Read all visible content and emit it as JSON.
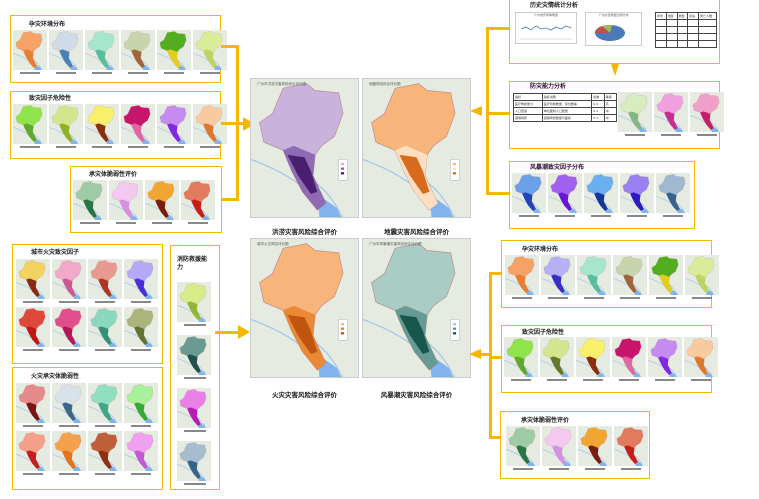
{
  "center": {
    "maps": [
      {
        "caption": "洪涝灾害风险综合评价",
        "title": "广州市洪涝灾害风险综合评价图",
        "colors": [
          "#c9b3dd",
          "#8a63b0",
          "#4b1f70"
        ]
      },
      {
        "caption": "地震灾害风险综合评价",
        "title": "地震风险综合评价图",
        "colors": [
          "#f7b57c",
          "#fde2c8",
          "#d86a1d"
        ]
      },
      {
        "caption": "火灾灾害风险综合评价",
        "title": "城市火灾风险评价图",
        "colors": [
          "#f7b57c",
          "#e8832f",
          "#c0550f"
        ]
      },
      {
        "caption": "风暴潮灾害风险综合评价",
        "title": "广州市风暴潮灾害风险综合评价图",
        "colors": [
          "#a9ccc5",
          "#5f958c",
          "#17564b"
        ]
      }
    ]
  },
  "left": {
    "groups": [
      {
        "title": "孕灾环境分布",
        "thumbs": [
          [
            "#f5a266",
            "#e87a2a"
          ],
          [
            "#cfdbe6",
            "#3c78b0"
          ],
          [
            "#a6e6cf",
            "#4fb893"
          ],
          [
            "#c7d4ad",
            "#9a5a32"
          ],
          [
            "#52ae1f",
            "#f2d31b"
          ],
          [
            "#d9ec9a",
            "#b8d35b"
          ]
        ]
      },
      {
        "title": "致灾因子危险性",
        "thumbs": [
          [
            "#8ee44a",
            "#5aa22a"
          ],
          [
            "#d2e68e",
            "#8aab1a"
          ],
          [
            "#f8f06a",
            "#7a1a05"
          ],
          [
            "#c7156e",
            "#e071a8"
          ],
          [
            "#c58bf0",
            "#7a1de0"
          ],
          [
            "#f8caa0",
            "#d9701d"
          ]
        ]
      },
      {
        "title": "承灾体脆弱性评价",
        "thumbs": [
          [
            "#9fcaa6",
            "#1f6a38"
          ],
          [
            "#f4c9f0",
            "#d08be0"
          ],
          [
            "#f2a632",
            "#6a0f08"
          ],
          [
            "#e27a5e",
            "#c31512"
          ]
        ]
      }
    ],
    "bottom_groups": [
      {
        "title": "城市火灾致灾因子",
        "thumbs": [
          [
            "#f3d360",
            "#7a1a0a"
          ],
          [
            "#f0a9c8",
            "#c9508c"
          ],
          [
            "#e89a90",
            "#a82a1a"
          ],
          [
            "#b3a9f4",
            "#3c20d8"
          ],
          [
            "#e0483a",
            "#c01010"
          ],
          [
            "#e04f8a",
            "#b01050"
          ],
          [
            "#8ad8c0",
            "#2a8a70"
          ],
          [
            "#a9b57a",
            "#5a6a2a"
          ]
        ]
      },
      {
        "title": "火灾承灾体脆弱性",
        "thumbs": [
          [
            "#e58a8a",
            "#6a0808"
          ],
          [
            "#d7e2ea",
            "#2a5a80"
          ],
          [
            "#8ee0c0",
            "#3aa080"
          ],
          [
            "#a8f09a",
            "#2aa02a"
          ],
          [
            "#f4a08a",
            "#c01010"
          ],
          [
            "#f5a04a",
            "#e07010"
          ],
          [
            "#c0603a",
            "#8a2a10"
          ],
          [
            "#f0a0f0",
            "#c050d0"
          ]
        ]
      },
      {
        "title": "消防救援能力",
        "thumbs": [
          [
            "#d8ec8a",
            "#8ab02a"
          ],
          [
            "#6a9a92",
            "#1a4a44"
          ],
          [
            "#e880e8",
            "#b010b0"
          ],
          [
            "#a8bcd0",
            "#2a5a80"
          ]
        ]
      }
    ]
  },
  "right": {
    "stats_title": "历史灾情统计分析",
    "line_chart_title": "广州市历年降雨量",
    "pie_title": "广州灾害类型比例分布",
    "pie_colors": [
      "#4a7ab8",
      "#c0504d",
      "#9bbb59"
    ],
    "table_headers": [
      "年份",
      "地区",
      "类型",
      "损失",
      "死亡人数"
    ],
    "capacity_title": "防灾能力分析",
    "capacity_table": {
      "headers": [
        "指标",
        "指标说明",
        "权重",
        "等级"
      ],
      "rows": [
        [
          "医疗救援能力",
          "医疗机构数量、床位数等",
          "0.4",
          "高"
        ],
        [
          "人口密度",
          "单位面积人口数量",
          "0.3",
          "中"
        ],
        [
          "避难场所",
          "避难场所数量与面积",
          "0.3",
          "中"
        ]
      ]
    },
    "capacity_thumbs": [
      [
        "#d9ecc0",
        "#7ab07a"
      ],
      [
        "#f0a0e0",
        "#c0208a"
      ],
      [
        "#f0a0c8",
        "#c01060"
      ]
    ],
    "storm_title": "风暴潮致灾因子分布",
    "storm_thumbs": [
      [
        "#6aa0e8",
        "#1a3ab0"
      ],
      [
        "#a060f0",
        "#6010d0"
      ],
      [
        "#6ab0f0",
        "#0a2a90"
      ],
      [
        "#9a80f0",
        "#2010c0"
      ],
      [
        "#a0b8d0",
        "#2a5a88"
      ]
    ],
    "groups": [
      {
        "title": "孕灾环境分布",
        "thumbs": [
          [
            "#f5a266",
            "#e87a2a"
          ],
          [
            "#b8b0f4",
            "#2a20c0"
          ],
          [
            "#a6e6cf",
            "#4fb893"
          ],
          [
            "#c7d4ad",
            "#9a5a32"
          ],
          [
            "#52ae1f",
            "#f2d31b"
          ],
          [
            "#d9ec9a",
            "#b8d35b"
          ]
        ]
      },
      {
        "title": "致灾因子危险性",
        "thumbs": [
          [
            "#8ee44a",
            "#5aa22a"
          ],
          [
            "#d2e68e",
            "#5a6a1a"
          ],
          [
            "#f8f06a",
            "#7a1a05"
          ],
          [
            "#c7156e",
            "#e071a8"
          ],
          [
            "#c58bf0",
            "#7a1de0"
          ],
          [
            "#f8caa0",
            "#d9701d"
          ]
        ]
      },
      {
        "title": "承灾体脆弱性评价",
        "thumbs": [
          [
            "#9fcaa6",
            "#1f6a38"
          ],
          [
            "#f4c9f0",
            "#d08be0"
          ],
          [
            "#f2a632",
            "#6a0f08"
          ],
          [
            "#e27a5e",
            "#c31512"
          ]
        ]
      }
    ]
  },
  "accent": "#f5b800"
}
